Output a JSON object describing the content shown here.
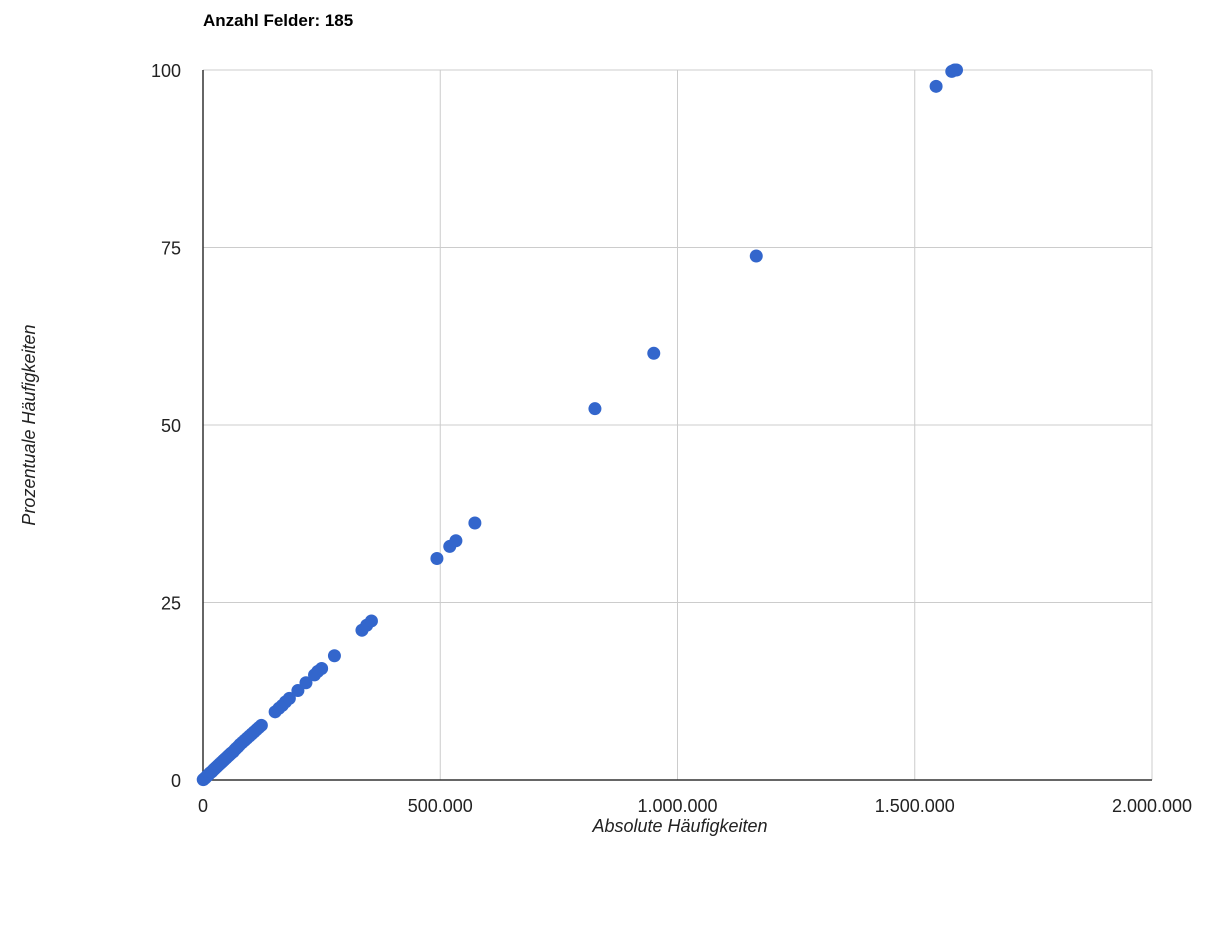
{
  "chart_data": {
    "type": "scatter",
    "title": "Anzahl Felder: 185",
    "xlabel": "Absolute Häufigkeiten",
    "ylabel": "Prozentuale Häufigkeiten",
    "xlim": [
      0,
      2000000
    ],
    "ylim": [
      0,
      100
    ],
    "x_ticks": [
      0,
      500000,
      1000000,
      1500000,
      2000000
    ],
    "x_tick_labels": [
      "0",
      "500.000",
      "1.000.000",
      "1.500.000",
      "2.000.000"
    ],
    "y_ticks": [
      0,
      25,
      50,
      75,
      100
    ],
    "y_tick_labels": [
      "0",
      "25",
      "50",
      "75",
      "100"
    ],
    "grid": true,
    "legend": "none",
    "point_color": "#3366cc",
    "points": [
      [
        500,
        0.05
      ],
      [
        1500,
        0.1
      ],
      [
        3000,
        0.2
      ],
      [
        5000,
        0.3
      ],
      [
        7000,
        0.45
      ],
      [
        9000,
        0.6
      ],
      [
        11000,
        0.7
      ],
      [
        13000,
        0.85
      ],
      [
        15000,
        1.0
      ],
      [
        17000,
        1.1
      ],
      [
        19000,
        1.2
      ],
      [
        21000,
        1.35
      ],
      [
        23000,
        1.5
      ],
      [
        25000,
        1.6
      ],
      [
        27000,
        1.75
      ],
      [
        29000,
        1.85
      ],
      [
        31000,
        2.0
      ],
      [
        33000,
        2.1
      ],
      [
        35000,
        2.25
      ],
      [
        37000,
        2.35
      ],
      [
        39000,
        2.5
      ],
      [
        41000,
        2.6
      ],
      [
        43000,
        2.75
      ],
      [
        45000,
        2.85
      ],
      [
        47000,
        3.0
      ],
      [
        49000,
        3.1
      ],
      [
        51000,
        3.25
      ],
      [
        53000,
        3.35
      ],
      [
        55000,
        3.5
      ],
      [
        57000,
        3.6
      ],
      [
        59000,
        3.75
      ],
      [
        61000,
        3.85
      ],
      [
        64000,
        4.0
      ],
      [
        67000,
        4.25
      ],
      [
        70000,
        4.45
      ],
      [
        74000,
        4.7
      ],
      [
        78000,
        5.0
      ],
      [
        83000,
        5.3
      ],
      [
        88000,
        5.6
      ],
      [
        93000,
        5.9
      ],
      [
        98000,
        6.2
      ],
      [
        103000,
        6.5
      ],
      [
        108000,
        6.8
      ],
      [
        113000,
        7.1
      ],
      [
        118000,
        7.4
      ],
      [
        123000,
        7.7
      ],
      [
        152000,
        9.6
      ],
      [
        160000,
        10.1
      ],
      [
        167000,
        10.5
      ],
      [
        174000,
        11.0
      ],
      [
        182000,
        11.5
      ],
      [
        200000,
        12.6
      ],
      [
        217000,
        13.7
      ],
      [
        235000,
        14.8
      ],
      [
        242000,
        15.3
      ],
      [
        250000,
        15.7
      ],
      [
        277000,
        17.5
      ],
      [
        335000,
        21.1
      ],
      [
        345000,
        21.8
      ],
      [
        355000,
        22.4
      ],
      [
        493000,
        31.2
      ],
      [
        520000,
        32.9
      ],
      [
        533000,
        33.7
      ],
      [
        573000,
        36.2
      ],
      [
        826000,
        52.3
      ],
      [
        950000,
        60.1
      ],
      [
        1166000,
        73.8
      ],
      [
        1545000,
        97.7
      ],
      [
        1578000,
        99.8
      ],
      [
        1584000,
        100.0
      ],
      [
        1588000,
        100.0
      ]
    ]
  }
}
